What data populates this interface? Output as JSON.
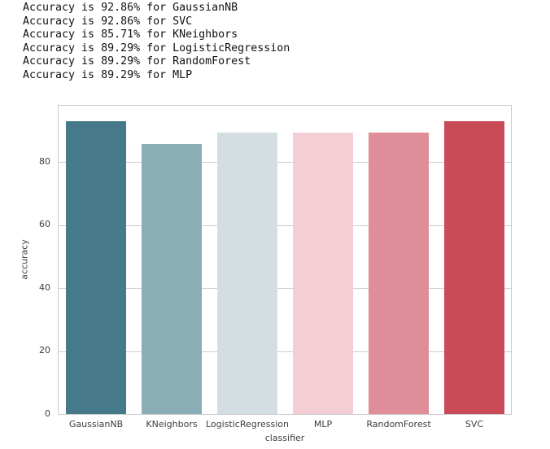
{
  "console": {
    "lines": [
      "Accuracy is 92.86% for GaussianNB",
      "Accuracy is 92.86% for SVC",
      "Accuracy is 85.71% for KNeighbors",
      "Accuracy is 89.29% for LogisticRegression",
      "Accuracy is 89.29% for RandomForest",
      "Accuracy is 89.29% for MLP"
    ]
  },
  "chart_data": {
    "type": "bar",
    "title": "",
    "xlabel": "classifier",
    "ylabel": "accuracy",
    "categories": [
      "GaussianNB",
      "KNeighbors",
      "LogisticRegression",
      "MLP",
      "RandomForest",
      "SVC"
    ],
    "values": [
      92.86,
      85.71,
      89.29,
      89.29,
      89.29,
      92.86
    ],
    "bar_colors": [
      "#467a8a",
      "#8badb6",
      "#d3dee2",
      "#f4ced5",
      "#df8d98",
      "#c94b58"
    ],
    "yticks": [
      0,
      20,
      40,
      60,
      80
    ],
    "ylim": [
      0,
      97.8
    ],
    "grid": true,
    "grid_color": "#cccccc",
    "frame_color": "#cccccc",
    "tick_text_color": "#3d3d3d",
    "legend_position": "none",
    "bar_width_ratio": 0.8
  }
}
